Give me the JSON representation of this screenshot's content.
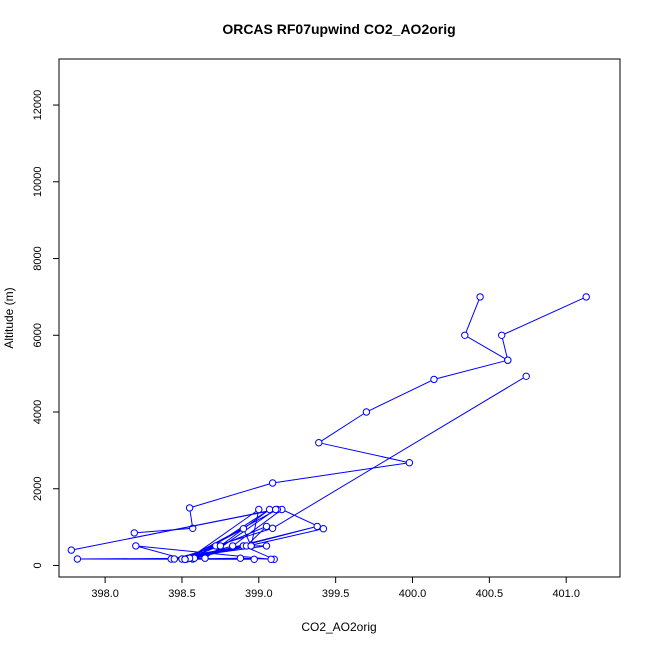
{
  "chart_data": {
    "type": "line",
    "title": "ORCAS RF07upwind CO2_AO2orig",
    "xlabel": "CO2_AO2orig",
    "ylabel": "Altitude (m)",
    "xlim": [
      397.7,
      401.35
    ],
    "ylim": [
      -300,
      13200
    ],
    "x_ticks": [
      398.0,
      398.5,
      399.0,
      399.5,
      400.0,
      400.5,
      401.0
    ],
    "x_tick_labels": [
      "398.0",
      "398.5",
      "399.0",
      "399.5",
      "400.0",
      "400.5",
      "401.0"
    ],
    "y_ticks": [
      0,
      2000,
      4000,
      6000,
      8000,
      10000,
      12000
    ],
    "y_tick_labels": [
      "0",
      "2000",
      "4000",
      "6000",
      "8000",
      "10000",
      "12000"
    ],
    "grid": false,
    "marker": "open-circle",
    "series": [
      {
        "color": "#0000ff",
        "x": [
          401.13,
          400.58,
          400.62,
          400.34,
          400.44
        ],
        "y": [
          7000,
          6000,
          5350,
          6000,
          7000
        ]
      },
      {
        "color": "#0000ff",
        "x": [
          400.62,
          400.14,
          399.7,
          399.39,
          399.98,
          399.09,
          398.55,
          398.57,
          398.19
        ],
        "y": [
          5350,
          4850,
          4000,
          3200,
          2680,
          2150,
          1500,
          970,
          850
        ]
      },
      {
        "color": "#0000ff",
        "x": [
          400.74,
          399.09,
          398.72,
          398.5,
          398.88,
          399.1,
          398.9,
          398.43,
          399.05,
          398.9,
          398.57,
          399.07,
          398.75,
          398.45,
          398.95,
          398.9,
          398.55,
          399.05,
          398.92,
          398.53,
          399.38,
          398.58,
          399.42,
          399.15,
          398.83,
          398.55,
          399.0,
          398.95,
          398.52,
          399.12,
          397.78,
          399.11,
          398.65,
          397.82,
          398.97,
          398.52,
          398.2,
          399.08
        ],
        "y": [
          4930,
          970,
          510,
          170,
          190,
          160,
          510,
          170,
          510,
          510,
          170,
          1460,
          510,
          170,
          510,
          960,
          190,
          1020,
          510,
          170,
          1020,
          190,
          960,
          1460,
          510,
          190,
          1460,
          510,
          160,
          1460,
          400,
          1460,
          190,
          170,
          160,
          160,
          510,
          160
        ]
      }
    ]
  }
}
